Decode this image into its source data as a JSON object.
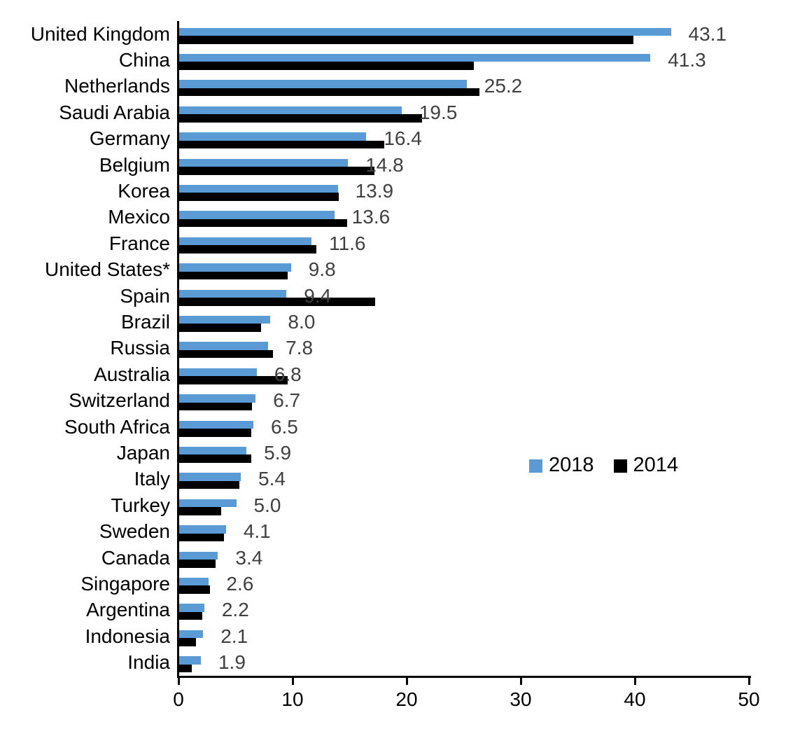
{
  "chart_data": {
    "type": "bar",
    "orientation": "horizontal",
    "title": "",
    "xlabel": "",
    "ylabel": "",
    "xlim": [
      0,
      50
    ],
    "x_ticks": [
      "0",
      "10",
      "20",
      "30",
      "40",
      "50"
    ],
    "grid": false,
    "legend_position": "middle-right",
    "categories": [
      "United Kingdom",
      "China",
      "Netherlands",
      "Saudi Arabia",
      "Germany",
      "Belgium",
      "Korea",
      "Mexico",
      "France",
      "United States*",
      "Spain",
      "Brazil",
      "Russia",
      "Australia",
      "Switzerland",
      "South Africa",
      "Japan",
      "Italy",
      "Turkey",
      "Sweden",
      "Canada",
      "Singapore",
      "Argentina",
      "Indonesia",
      "India"
    ],
    "series": [
      {
        "name": "2018",
        "color": "#5B9BD5",
        "values": [
          43.1,
          41.3,
          25.2,
          19.5,
          16.4,
          14.8,
          13.9,
          13.6,
          11.6,
          9.8,
          9.4,
          8.0,
          7.8,
          6.8,
          6.7,
          6.5,
          5.9,
          5.4,
          5.0,
          4.1,
          3.4,
          2.6,
          2.2,
          2.1,
          1.9
        ]
      },
      {
        "name": "2014",
        "color": "#000000",
        "values": [
          39.8,
          25.8,
          26.3,
          21.3,
          18.0,
          17.1,
          14.0,
          14.7,
          12.0,
          9.5,
          17.2,
          7.2,
          8.2,
          9.5,
          6.4,
          6.3,
          6.3,
          5.3,
          3.7,
          3.9,
          3.2,
          2.7,
          2.0,
          1.5,
          1.1
        ]
      }
    ],
    "value_labels": {
      "series": "2018",
      "values": [
        "43.1",
        "41.3",
        "25.2",
        "19.5",
        "16.4",
        "14.8",
        "13.9",
        "13.6",
        "11.6",
        "9.8",
        "9.4",
        "8.0",
        "7.8",
        "6.8",
        "6.7",
        "6.5",
        "5.9",
        "5.4",
        "5.0",
        "4.1",
        "3.4",
        "2.6",
        "2.2",
        "2.1",
        "1.9"
      ],
      "color": "#404040"
    },
    "axis_color": "#000000"
  }
}
